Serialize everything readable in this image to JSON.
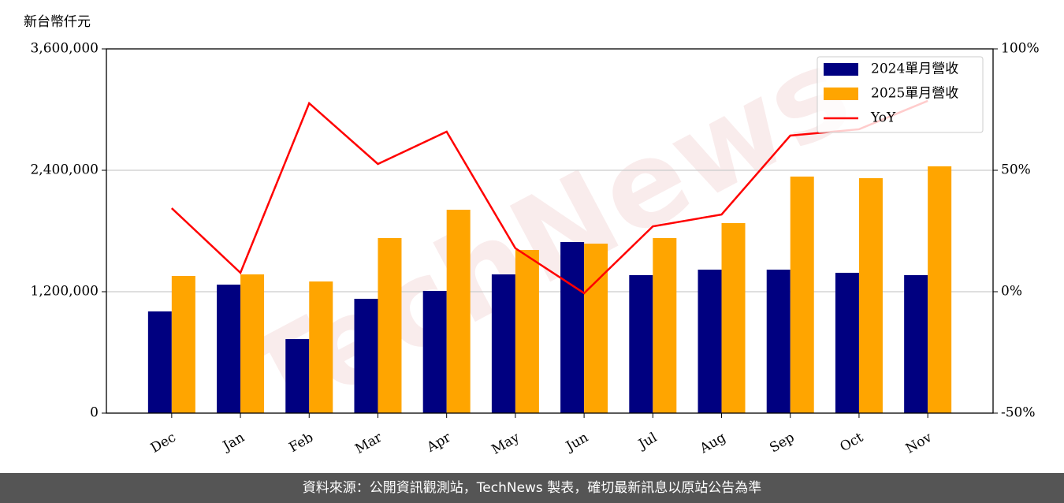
{
  "chart_data": {
    "type": "bar",
    "y_label": "新台幣仟元",
    "watermark": "TechNews",
    "categories": [
      "Dec",
      "Jan",
      "Feb",
      "Mar",
      "Apr",
      "May",
      "Jun",
      "Jul",
      "Aug",
      "Sep",
      "Oct",
      "Nov"
    ],
    "series": [
      {
        "name": "2024單月營收",
        "color": "#000080",
        "values": [
          1005000,
          1270000,
          732000,
          1130000,
          1208000,
          1371000,
          1691000,
          1364000,
          1418000,
          1418000,
          1387000,
          1364000
        ]
      },
      {
        "name": "2025單月營收",
        "color": "#ffa500",
        "values": [
          1356000,
          1371000,
          1301000,
          1730000,
          2010000,
          1613000,
          1675000,
          1730000,
          1878000,
          2338000,
          2322000,
          2439000
        ]
      },
      {
        "name": "YoY",
        "type": "line",
        "axis": "y2",
        "color": "#ff0000",
        "values": [
          34.4,
          7.8,
          77.6,
          52.6,
          65.9,
          17.9,
          -0.6,
          26.9,
          31.8,
          64.3,
          66.9,
          78.6
        ]
      }
    ],
    "ylim": [
      0,
      3600000
    ],
    "yticks": [
      0,
      {
        "value": 1200000,
        "label": "1,200,000"
      },
      {
        "value": 2400000,
        "label": "2,400,000"
      },
      {
        "value": 3600000,
        "label": "3,600,000"
      }
    ],
    "y2lim": [
      -50,
      100
    ],
    "y2ticks": [
      {
        "value": -50,
        "label": "-50%"
      },
      {
        "value": 0,
        "label": "0%"
      },
      {
        "value": 50,
        "label": "50%"
      },
      {
        "value": 100,
        "label": "100%"
      }
    ],
    "grid": true,
    "legend": "upper right"
  },
  "footer": "資料來源：公開資訊觀測站，TechNews 製表，確切最新訊息以原站公告為準"
}
